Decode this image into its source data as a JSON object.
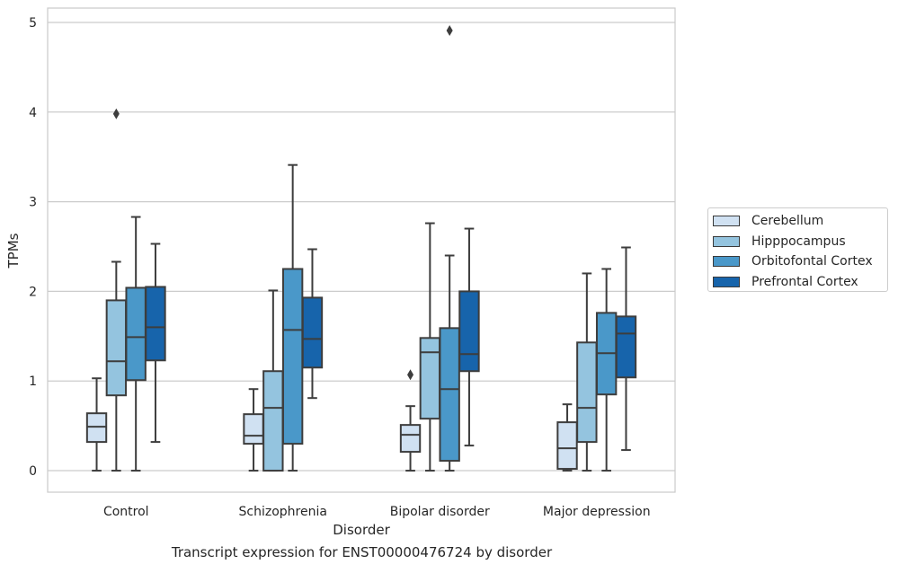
{
  "chart_data": {
    "type": "box",
    "xlabel": "Disorder",
    "ylabel": "TPMs",
    "caption": "Transcript expression for ENST00000476724 by disorder",
    "categories": [
      "Control",
      "Schizophrenia",
      "Bipolar disorder",
      "Major depression"
    ],
    "ylim": [
      -0.24,
      5.16
    ],
    "yticks": [
      0,
      1,
      2,
      3,
      4,
      5
    ],
    "grid": true,
    "legend_position": "right",
    "series": [
      {
        "name": "Cerebellum",
        "color": "#d0e1f2",
        "boxes": [
          {
            "min": 0,
            "q1": 0.32,
            "median": 0.49,
            "q3": 0.64,
            "max": 1.03,
            "outliers": []
          },
          {
            "min": 0,
            "q1": 0.3,
            "median": 0.39,
            "q3": 0.63,
            "max": 0.91,
            "outliers": []
          },
          {
            "min": 0,
            "q1": 0.21,
            "median": 0.4,
            "q3": 0.51,
            "max": 0.72,
            "outliers": [
              1.07
            ]
          },
          {
            "min": 0,
            "q1": 0.02,
            "median": 0.25,
            "q3": 0.54,
            "max": 0.74,
            "outliers": []
          }
        ]
      },
      {
        "name": "Hipppocampus",
        "color": "#94c4df",
        "boxes": [
          {
            "min": 0,
            "q1": 0.84,
            "median": 1.22,
            "q3": 1.9,
            "max": 2.33,
            "outliers": [
              3.98
            ]
          },
          {
            "min": 0,
            "q1": 0,
            "median": 0.7,
            "q3": 1.11,
            "max": 2.01,
            "outliers": []
          },
          {
            "min": 0,
            "q1": 0.58,
            "median": 1.32,
            "q3": 1.48,
            "max": 2.76,
            "outliers": []
          },
          {
            "min": 0,
            "q1": 0.32,
            "median": 0.7,
            "q3": 1.43,
            "max": 2.2,
            "outliers": []
          }
        ]
      },
      {
        "name": "Orbitofontal Cortex",
        "color": "#4a98c9",
        "boxes": [
          {
            "min": 0,
            "q1": 1.01,
            "median": 1.49,
            "q3": 2.04,
            "max": 2.83,
            "outliers": []
          },
          {
            "min": 0,
            "q1": 0.3,
            "median": 1.57,
            "q3": 2.25,
            "max": 3.41,
            "outliers": []
          },
          {
            "min": 0,
            "q1": 0.11,
            "median": 0.91,
            "q3": 1.59,
            "max": 2.4,
            "outliers": [
              4.91
            ]
          },
          {
            "min": 0,
            "q1": 0.85,
            "median": 1.31,
            "q3": 1.76,
            "max": 2.25,
            "outliers": []
          }
        ]
      },
      {
        "name": "Prefrontal Cortex",
        "color": "#1764ab",
        "boxes": [
          {
            "min": 0.32,
            "q1": 1.23,
            "median": 1.6,
            "q3": 2.05,
            "max": 2.53,
            "outliers": []
          },
          {
            "min": 0.81,
            "q1": 1.15,
            "median": 1.47,
            "q3": 1.93,
            "max": 2.47,
            "outliers": []
          },
          {
            "min": 0.28,
            "q1": 1.11,
            "median": 1.3,
            "q3": 2.0,
            "max": 2.7,
            "outliers": []
          },
          {
            "min": 0.23,
            "q1": 1.04,
            "median": 1.53,
            "q3": 1.72,
            "max": 2.49,
            "outliers": []
          }
        ]
      }
    ]
  }
}
